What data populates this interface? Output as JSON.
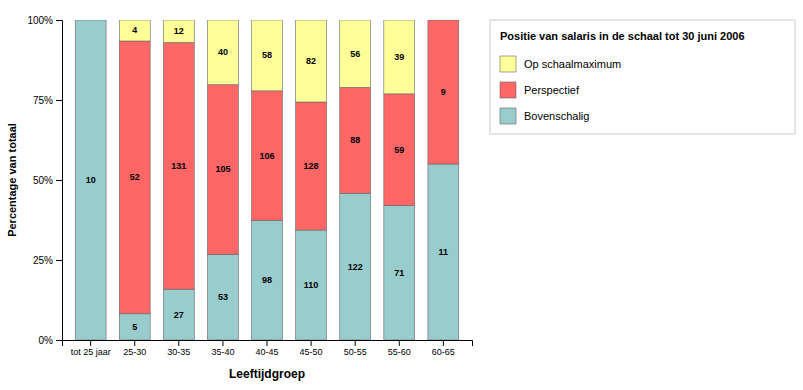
{
  "chart_data": {
    "type": "bar",
    "stacked": true,
    "categories": [
      "tot 25 jaar",
      "25-30",
      "30-35",
      "35-40",
      "40-45",
      "45-50",
      "50-55",
      "55-60",
      "60-65"
    ],
    "series": [
      {
        "name": "Bovenschalig",
        "color": "#99CCCC",
        "values": [
          100,
          8.19672131147541,
          15.88235294117647,
          26.767676767676768,
          37.40458015267176,
          34.375,
          45.86466165413534,
          42.01183431952663,
          55
        ],
        "counts": [
          10,
          5,
          27,
          53,
          98,
          110,
          122,
          71,
          11
        ]
      },
      {
        "name": "Perspectief",
        "color": "#FF6666",
        "values": [
          0,
          85.24590163934425,
          77.05882352941177,
          53.03030303030303,
          40.45801526717557,
          40,
          33.08270676691729,
          34.9112426035503,
          45
        ],
        "counts": [
          0,
          52,
          131,
          105,
          106,
          128,
          88,
          59,
          9
        ]
      },
      {
        "name": "Op schaalmaximum",
        "color": "#FFFF99",
        "values": [
          0,
          6.557377049180328,
          7.058823529411764,
          20.2020202020202,
          22.137404580152673,
          25.625,
          21.05263157894737,
          23.076923076923077,
          0
        ],
        "counts": [
          0,
          4,
          12,
          40,
          58,
          82,
          56,
          39,
          0
        ]
      }
    ],
    "xlabel": "Leeftijdgroep",
    "ylabel": "Percentage van totaal",
    "ylim": [
      0,
      100
    ],
    "yticks": [
      {
        "value": 0,
        "label": "0%"
      },
      {
        "value": 25,
        "label": "25%"
      },
      {
        "value": 50,
        "label": "50%"
      },
      {
        "value": 75,
        "label": "75%"
      },
      {
        "value": 100,
        "label": "100%"
      }
    ],
    "legend": "right",
    "legend_title": "Positie van salaris in de schaal tot 30 juni 2006"
  }
}
